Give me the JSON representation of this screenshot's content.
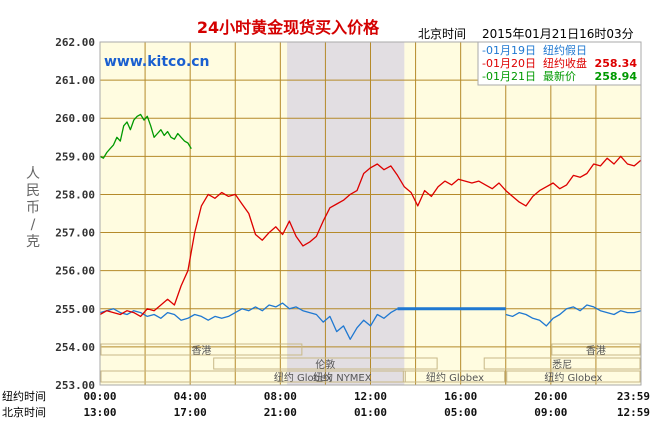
{
  "chart_data": {
    "type": "line",
    "title": "24小时黄金现货买入价格",
    "timestamp_label": "北京时间",
    "timestamp": "2015年01月21日16时03分",
    "ylabel": "人民币/克",
    "website": "www.kitco.cn",
    "ylim": [
      253.0,
      262.0
    ],
    "yticks": [
      "262.00",
      "261.00",
      "260.00",
      "259.00",
      "258.00",
      "257.00",
      "256.00",
      "255.00",
      "254.00",
      "253.00"
    ],
    "x_rows": [
      {
        "label": "纽约时间",
        "ticks": [
          "00:00",
          "04:00",
          "08:00",
          "12:00",
          "16:00",
          "20:00",
          "23:59"
        ]
      },
      {
        "label": "北京时间",
        "ticks": [
          "13:00",
          "17:00",
          "21:00",
          "01:00",
          "05:00",
          "09:00",
          "12:59"
        ]
      }
    ],
    "xlim": [
      0,
      24
    ],
    "sessions": [
      {
        "label": "香港",
        "start": 0,
        "end": 9
      },
      {
        "label": "伦敦",
        "start": 5,
        "end": 15
      },
      {
        "label": "纽约 Globex",
        "start": 0,
        "end": 18
      },
      {
        "label": "纽约 NYMEX",
        "start": 8,
        "end": 13.5
      },
      {
        "label": "纽约 Globex",
        "start": 13.5,
        "end": 18
      },
      {
        "label": "悉尼",
        "start": 17,
        "end": 24
      },
      {
        "label": "香港",
        "start": 20,
        "end": 24
      },
      {
        "label": "纽约 Globex",
        "start": 18,
        "end": 24
      }
    ],
    "shaded_region": [
      8.3,
      13.5
    ],
    "legend": [
      {
        "date": "01月19日",
        "status": "纽约假日",
        "value": ""
      },
      {
        "date": "01月20日",
        "status": "纽约收盘",
        "value": "258.34"
      },
      {
        "date": "01月21日",
        "status": "最新价",
        "value": "258.94"
      }
    ],
    "series": [
      {
        "name": "01月19日",
        "color": "#1f78d1",
        "segments": [
          {
            "x": [
              0,
              0.3,
              0.6,
              0.9,
              1.2,
              1.5,
              1.8,
              2.1,
              2.4,
              2.7,
              3.0,
              3.3,
              3.6,
              3.9,
              4.2,
              4.5,
              4.8,
              5.1,
              5.4,
              5.7,
              6.0,
              6.3,
              6.6,
              6.9,
              7.2,
              7.5,
              7.8,
              8.1,
              8.4,
              8.7,
              9.0,
              9.3,
              9.6,
              9.9,
              10.2,
              10.5,
              10.8,
              11.1,
              11.4,
              11.7,
              12.0,
              12.3,
              12.6,
              12.9,
              13.2
            ],
            "y": [
              254.9,
              254.95,
              255.0,
              254.9,
              254.85,
              254.95,
              254.9,
              254.8,
              254.85,
              254.75,
              254.9,
              254.85,
              254.7,
              254.75,
              254.85,
              254.8,
              254.7,
              254.8,
              254.75,
              254.8,
              254.9,
              255.0,
              254.95,
              255.05,
              254.95,
              255.1,
              255.05,
              255.15,
              255.0,
              255.05,
              254.95,
              254.9,
              254.85,
              254.65,
              254.8,
              254.4,
              254.55,
              254.2,
              254.5,
              254.7,
              254.55,
              254.85,
              254.75,
              254.9,
              255.0
            ]
          },
          {
            "x": [
              13.2,
              18.0
            ],
            "y": [
              255.0,
              255.0
            ]
          },
          {
            "x": [
              18.0,
              18.3,
              18.6,
              18.9,
              19.2,
              19.5,
              19.8,
              20.1,
              20.4,
              20.7,
              21.0,
              21.3,
              21.6,
              21.9,
              22.2,
              22.5,
              22.8,
              23.1,
              23.4,
              23.7,
              24.0
            ],
            "y": [
              254.85,
              254.8,
              254.9,
              254.85,
              254.75,
              254.7,
              254.55,
              254.75,
              254.85,
              255.0,
              255.05,
              254.95,
              255.1,
              255.05,
              254.95,
              254.9,
              254.85,
              254.95,
              254.9,
              254.9,
              254.95
            ]
          }
        ]
      },
      {
        "name": "01月20日",
        "color": "#dd0000",
        "segments": [
          {
            "x": [
              0,
              0.3,
              0.6,
              0.9,
              1.2,
              1.5,
              1.8,
              2.1,
              2.4,
              2.7,
              3.0,
              3.3,
              3.6,
              3.9,
              4.2,
              4.5,
              4.8,
              5.1,
              5.4,
              5.7,
              6.0,
              6.3,
              6.6,
              6.9,
              7.2,
              7.5,
              7.8,
              8.1,
              8.4,
              8.7,
              9.0,
              9.3,
              9.6,
              9.9,
              10.2,
              10.5,
              10.8,
              11.1,
              11.4,
              11.7,
              12.0,
              12.3,
              12.6,
              12.9,
              13.2,
              13.5,
              13.8,
              14.1,
              14.4,
              14.7,
              15.0,
              15.3,
              15.6,
              15.9,
              16.2,
              16.5,
              16.8,
              17.1,
              17.4,
              17.7,
              18.0,
              18.3,
              18.6,
              18.9,
              19.2,
              19.5,
              19.8,
              20.1,
              20.4,
              20.7,
              21.0,
              21.3,
              21.6,
              21.9,
              22.2,
              22.5,
              22.8,
              23.1,
              23.4,
              23.7,
              24.0
            ],
            "y": [
              254.85,
              254.95,
              254.9,
              254.85,
              254.95,
              254.9,
              254.8,
              255.0,
              254.95,
              255.1,
              255.25,
              255.1,
              255.6,
              256.0,
              257.0,
              257.7,
              258.0,
              257.9,
              258.05,
              257.95,
              258.0,
              257.75,
              257.5,
              256.95,
              256.8,
              257.0,
              257.15,
              256.95,
              257.3,
              256.9,
              256.65,
              256.75,
              256.9,
              257.3,
              257.65,
              257.75,
              257.85,
              258.0,
              258.1,
              258.55,
              258.7,
              258.8,
              258.65,
              258.75,
              258.5,
              258.2,
              258.05,
              257.7,
              258.1,
              257.95,
              258.2,
              258.35,
              258.25,
              258.4,
              258.35,
              258.3,
              258.35,
              258.25,
              258.15,
              258.3,
              258.1,
              257.95,
              257.8,
              257.7,
              257.95,
              258.1,
              258.2,
              258.3,
              258.15,
              258.25,
              258.5,
              258.45,
              258.55,
              258.8,
              258.75,
              258.95,
              258.8,
              259.0,
              258.8,
              258.75,
              258.9
            ]
          }
        ]
      },
      {
        "name": "01月21日",
        "color": "#009900",
        "segments": [
          {
            "x": [
              0,
              0.15,
              0.3,
              0.45,
              0.6,
              0.75,
              0.9,
              1.05,
              1.2,
              1.35,
              1.5,
              1.65,
              1.8,
              1.95,
              2.1,
              2.25,
              2.4,
              2.55,
              2.7,
              2.85,
              3.0,
              3.15,
              3.3,
              3.45,
              3.6,
              3.75,
              3.9,
              4.05
            ],
            "y": [
              259.0,
              258.95,
              259.1,
              259.2,
              259.3,
              259.5,
              259.4,
              259.8,
              259.9,
              259.7,
              259.95,
              260.05,
              260.1,
              259.95,
              260.05,
              259.8,
              259.5,
              259.6,
              259.7,
              259.55,
              259.65,
              259.5,
              259.45,
              259.6,
              259.5,
              259.4,
              259.35,
              259.2
            ]
          }
        ]
      }
    ]
  }
}
